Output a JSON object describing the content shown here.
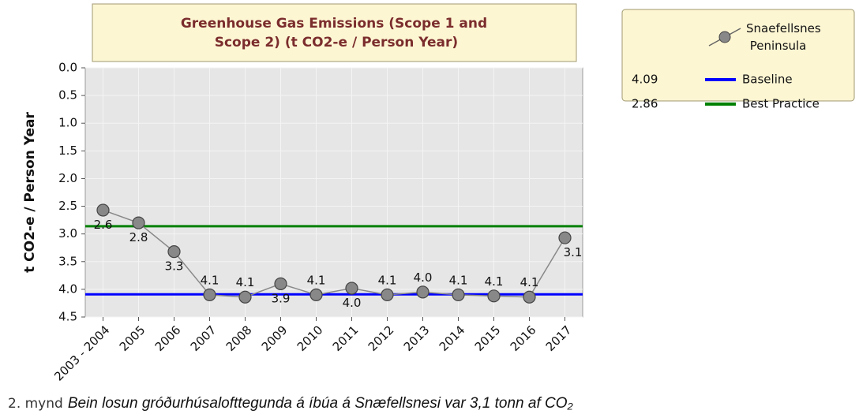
{
  "chart_data": {
    "type": "line",
    "title": "Greenhouse Gas Emissions (Scope 1 and Scope 2) (t CO2-e / Person Year)",
    "y_label": "t CO2-e / Person Year",
    "categories": [
      "2003 - 2004",
      "2005",
      "2006",
      "2007",
      "2008",
      "2009",
      "2010",
      "2011",
      "2012",
      "2013",
      "2014",
      "2015",
      "2016",
      "2017"
    ],
    "series": [
      {
        "name": "Snaefellsnes Peninsula",
        "color": "#888888",
        "values": [
          2.57,
          2.8,
          3.32,
          4.1,
          4.14,
          3.9,
          4.1,
          3.98,
          4.1,
          4.05,
          4.1,
          4.12,
          4.14,
          3.07
        ],
        "value_labels": [
          "2.6",
          "2.8",
          "3.3",
          "4.1",
          "4.1",
          "3.9",
          "4.1",
          "4.0",
          "4.1",
          "4.0",
          "4.1",
          "4.1",
          "4.1",
          "3.1"
        ]
      }
    ],
    "reference_lines": [
      {
        "name": "Baseline",
        "value": 4.09,
        "color": "#0000ff"
      },
      {
        "name": "Best Practice",
        "value": 2.86,
        "color": "#008000"
      }
    ],
    "ylim": [
      0,
      4.5
    ],
    "y_inverted": true,
    "yticks": [
      {
        "value": 0,
        "label": "0.0"
      },
      0.5,
      {
        "value": 1,
        "label": "1.0"
      },
      1.5,
      {
        "value": 2,
        "label": "2.0"
      },
      2.5,
      {
        "value": 3,
        "label": "3.0"
      },
      3.5,
      {
        "value": 4,
        "label": "4.0"
      },
      4.5
    ],
    "grid": true,
    "legend": "top-right"
  },
  "caption": {
    "label": "2. mynd",
    "text": "Bein losun gróðurhúsalofttegunda á íbúa á Snæfellsnesi var 3,1 tonn af CO₂"
  }
}
